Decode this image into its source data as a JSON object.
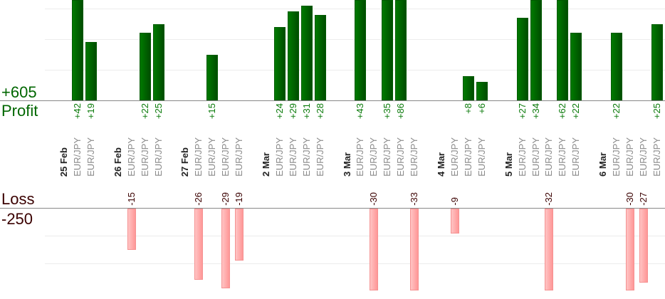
{
  "chart_data": {
    "type": "bar",
    "profit": {
      "label": "Profit",
      "total": "+605",
      "color": "#006600"
    },
    "loss": {
      "label": "Loss",
      "total": "-250",
      "color": "#3a0000"
    },
    "grid": true,
    "days": [
      {
        "date": "25 Feb",
        "trades": [
          {
            "pair": "EUR/JPY",
            "result": 42
          },
          {
            "pair": "EUR/JPY",
            "result": 19
          }
        ]
      },
      {
        "date": "26 Feb",
        "trades": [
          {
            "pair": "EUR/JPY",
            "result": -15
          },
          {
            "pair": "EUR/JPY",
            "result": 22
          },
          {
            "pair": "EUR/JPY",
            "result": 25
          }
        ]
      },
      {
        "date": "27 Feb",
        "trades": [
          {
            "pair": "EUR/JPY",
            "result": -26
          },
          {
            "pair": "EUR/JPY",
            "result": 15
          },
          {
            "pair": "EUR/JPY",
            "result": -29
          },
          {
            "pair": "EUR/JPY",
            "result": -19
          }
        ]
      },
      {
        "date": "2 Mar",
        "trades": [
          {
            "pair": "EUR/JPY",
            "result": 24
          },
          {
            "pair": "EUR/JPY",
            "result": 29
          },
          {
            "pair": "EUR/JPY",
            "result": 31
          },
          {
            "pair": "EUR/JPY",
            "result": 28
          }
        ]
      },
      {
        "date": "3 Mar",
        "trades": [
          {
            "pair": "EUR/JPY",
            "result": 43
          },
          {
            "pair": "EUR/JPY",
            "result": -30
          },
          {
            "pair": "EUR/JPY",
            "result": 35
          },
          {
            "pair": "EUR/JPY",
            "result": 86
          },
          {
            "pair": "EUR/JPY",
            "result": -33
          }
        ]
      },
      {
        "date": "4 Mar",
        "trades": [
          {
            "pair": "EUR/JPY",
            "result": -9
          },
          {
            "pair": "EUR/JPY",
            "result": 8
          },
          {
            "pair": "EUR/JPY",
            "result": 6
          }
        ]
      },
      {
        "date": "5 Mar",
        "trades": [
          {
            "pair": "EUR/JPY",
            "result": 27
          },
          {
            "pair": "EUR/JPY",
            "result": 34
          },
          {
            "pair": "EUR/JPY",
            "result": -32
          },
          {
            "pair": "EUR/JPY",
            "result": 62
          },
          {
            "pair": "EUR/JPY",
            "result": 22
          }
        ]
      },
      {
        "date": "6 Mar",
        "trades": [
          {
            "pair": "EUR/JPY",
            "result": 22
          },
          {
            "pair": "EUR/JPY",
            "result": -30
          },
          {
            "pair": "EUR/JPY",
            "result": -27
          },
          {
            "pair": "EUR/JPY",
            "result": 25
          }
        ]
      }
    ]
  }
}
